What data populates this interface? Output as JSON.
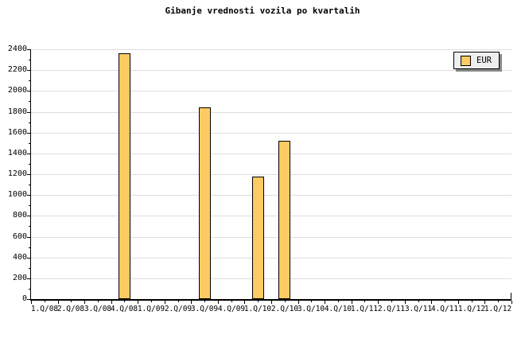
{
  "title": "Gibanje vrednosti vozila po kvartalih",
  "colors": {
    "bar_fill": "#FDCB62",
    "bar_border": "#000000",
    "grid": "#DDDDDD",
    "axis": "#000000",
    "background": "#FFFFFF",
    "legend_bg": "#EEEEEE",
    "legend_border": "#000000",
    "legend_shadow": "#888888",
    "text": "#000000"
  },
  "legend": {
    "label": "EUR",
    "position": "top-right"
  },
  "chart_data": {
    "type": "bar",
    "title": "Gibanje vrednosti vozila po kvartalih",
    "xlabel": "",
    "ylabel": "",
    "categories": [
      "1.Q/08",
      "2.Q/08",
      "3.Q/08",
      "4.Q/08",
      "1.Q/09",
      "2.Q/09",
      "3.Q/09",
      "4.Q/09",
      "1.Q/10",
      "2.Q/10",
      "3.Q/10",
      "4.Q/10",
      "1.Q/11",
      "2.Q/11",
      "3.Q/11",
      "4.Q/11",
      "1.Q/12",
      "1.Q/12"
    ],
    "series": [
      {
        "name": "EUR",
        "values": [
          null,
          null,
          null,
          2365,
          null,
          null,
          1845,
          null,
          1180,
          1520,
          null,
          null,
          null,
          null,
          null,
          null,
          null,
          null
        ]
      }
    ],
    "ylim": [
      0,
      2400
    ],
    "yticks": [
      0,
      200,
      400,
      600,
      800,
      1000,
      1200,
      1400,
      1600,
      1800,
      2000,
      2200,
      2400
    ],
    "ytick_minor_step": 100,
    "grid": "horizontal",
    "legend_position": "top-right",
    "legend_entries": [
      "EUR"
    ]
  }
}
